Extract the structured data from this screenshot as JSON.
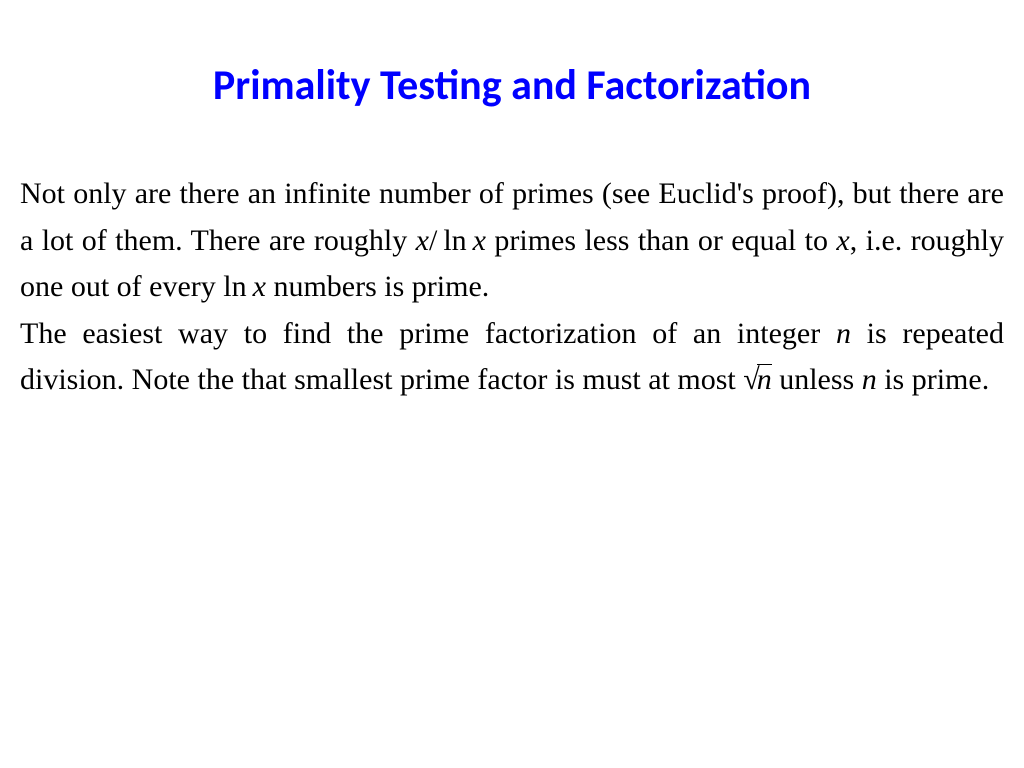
{
  "slide": {
    "title": "Primality Testing and Factorization",
    "title_color": "#0000ff",
    "title_fontsize": 42,
    "body_fontsize": 30,
    "text_color": "#000000",
    "background_color": "#ffffff",
    "para1_part1": "Not only are there an infinite number of primes (see Euclid's proof), but there are a lot of them. There are roughly ",
    "math1_x": "x",
    "math1_slash": "/",
    "math1_ln": "ln",
    "math1_x2": "x",
    "para1_part2": " primes less than or equal to ",
    "math2_x": "x",
    "para1_part3": ", i.e. roughly one out of every ",
    "math3_ln": "ln",
    "math3_x": "x",
    "para1_part4": " numbers is prime.",
    "para2_part1": "The easiest way to find the prime factorization of an integer ",
    "math4_n": "n",
    "para2_part2": " is repeated division. Note the that smallest prime factor is must at most ",
    "math5_radical": "√",
    "math5_n": "n",
    "para2_part3": " unless ",
    "math6_n": "n",
    "para2_part4": " is prime."
  }
}
